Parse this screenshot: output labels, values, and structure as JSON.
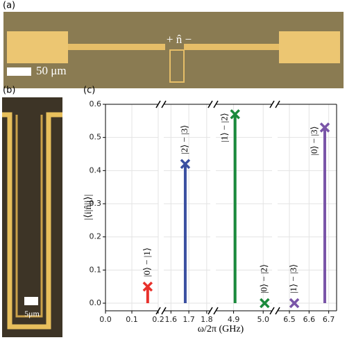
{
  "panel_a": {
    "label": "(a)",
    "operator_label": "+ n̂ −",
    "scale_bar": "50 μm"
  },
  "panel_b": {
    "label": "(b)",
    "scale_bar": "5μm"
  },
  "chart_data": {
    "type": "stem",
    "panel_label": "(c)",
    "x_label": "ω/2π (GHz)",
    "y_label": "|⟨i|n̂|j⟩|",
    "ylim": [
      -0.023,
      0.6
    ],
    "yticks": [
      {
        "value": 0,
        "label": "0.0"
      },
      0.1,
      0.2,
      0.3,
      0.4,
      0.5,
      0.6
    ],
    "grid": true,
    "broken_x": true,
    "segments": [
      {
        "xlim": [
          0,
          0.2
        ],
        "xticks": [
          {
            "value": 0,
            "label": "0.0"
          },
          0.1,
          0.2
        ]
      },
      {
        "xlim": [
          1.56,
          1.82
        ],
        "xticks": [
          1.6,
          1.7,
          1.8
        ]
      },
      {
        "xlim": [
          4.84,
          5.03
        ],
        "xticks": [
          4.9,
          {
            "value": 5,
            "label": "5.0"
          }
        ]
      },
      {
        "xlim": [
          6.44,
          6.74
        ],
        "xticks": [
          6.5,
          6.6,
          6.7
        ]
      }
    ],
    "series": [
      {
        "color": "#e8302a",
        "x": [
          0.16
        ],
        "values": [
          0.05
        ],
        "annotations": [
          "|0⟩ − |1⟩"
        ]
      },
      {
        "color": "#3a4fa0",
        "x": [
          1.68
        ],
        "values": [
          0.42
        ],
        "annotations": [
          "|2⟩ − |3⟩"
        ]
      },
      {
        "color": "#1a8a3c",
        "x": [
          4.905,
          5.005
        ],
        "values": [
          0.57,
          0
        ],
        "annotations": [
          "|1⟩ − |2⟩",
          "|0⟩ − |2⟩"
        ]
      },
      {
        "color": "#7a55a8",
        "x": [
          6.525,
          6.68
        ],
        "values": [
          0,
          0.53
        ],
        "annotations": [
          "|1⟩ − |3⟩",
          "|0⟩ − |3⟩"
        ]
      }
    ]
  }
}
